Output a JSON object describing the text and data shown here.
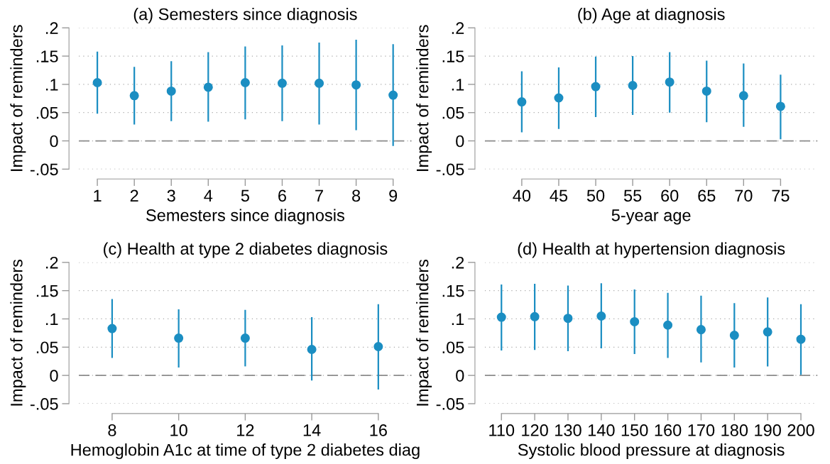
{
  "chart_data": [
    {
      "type": "scatter",
      "title": "(a) Semesters since diagnosis",
      "xlabel": "Semesters since diagnosis",
      "ylabel": "Impact of reminders",
      "x": [
        1,
        2,
        3,
        4,
        5,
        6,
        7,
        8,
        9
      ],
      "series": [
        {
          "color": "#1b8ec2",
          "values": [
            0.103,
            0.08,
            0.088,
            0.095,
            0.103,
            0.102,
            0.102,
            0.099,
            0.081
          ],
          "errors": [
            [
              0.048,
              0.158
            ],
            [
              0.029,
              0.131
            ],
            [
              0.035,
              0.141
            ],
            [
              0.034,
              0.157
            ],
            [
              0.038,
              0.167
            ],
            [
              0.035,
              0.169
            ],
            [
              0.029,
              0.174
            ],
            [
              0.019,
              0.179
            ],
            [
              -0.009,
              0.171
            ]
          ]
        }
      ],
      "xlim": [
        0.5,
        9.5
      ],
      "xticks": [
        1,
        2,
        3,
        4,
        5,
        6,
        7,
        8,
        9
      ],
      "ylim": [
        -0.05,
        0.2
      ],
      "yticks": [
        {
          "value": -0.05,
          "label": "-.05"
        },
        0,
        {
          "value": 0.05,
          "label": ".05"
        },
        {
          "value": 0.1,
          "label": ".1"
        },
        {
          "value": 0.15,
          "label": ".15"
        },
        {
          "value": 0.2,
          "label": ".2"
        }
      ],
      "ref_lines": [
        {
          "axis": "y",
          "value": 0,
          "color": "#8c8c8c",
          "line_style": "dashed"
        }
      ],
      "grid": "y",
      "marker": "circle",
      "legend": false
    },
    {
      "type": "scatter",
      "title": "(b) Age at diagnosis",
      "xlabel": "5-year age",
      "ylabel": "Impact of reminders",
      "x": [
        40,
        45,
        50,
        55,
        60,
        65,
        70,
        75
      ],
      "series": [
        {
          "color": "#1b8ec2",
          "values": [
            0.069,
            0.076,
            0.096,
            0.098,
            0.104,
            0.088,
            0.08,
            0.061
          ],
          "errors": [
            [
              0.015,
              0.123
            ],
            [
              0.021,
              0.13
            ],
            [
              0.042,
              0.149
            ],
            [
              0.046,
              0.15
            ],
            [
              0.05,
              0.157
            ],
            [
              0.033,
              0.142
            ],
            [
              0.025,
              0.137
            ],
            [
              0.003,
              0.117
            ]
          ]
        }
      ],
      "xlim": [
        35,
        80
      ],
      "xticks": [
        40,
        45,
        50,
        55,
        60,
        65,
        70,
        75
      ],
      "ylim": [
        -0.05,
        0.2
      ],
      "yticks": [
        {
          "value": -0.05,
          "label": "-.05"
        },
        0,
        {
          "value": 0.05,
          "label": ".05"
        },
        {
          "value": 0.1,
          "label": ".1"
        },
        {
          "value": 0.15,
          "label": ".15"
        },
        {
          "value": 0.2,
          "label": ".2"
        }
      ],
      "ref_lines": [
        {
          "axis": "y",
          "value": 0,
          "color": "#8c8c8c",
          "line_style": "dashed"
        }
      ],
      "grid": "y",
      "marker": "circle",
      "legend": false
    },
    {
      "type": "scatter",
      "title": "(c) Health at type 2 diabetes diagnosis",
      "xlabel": "Hemoglobin A1c at time of type 2 diabetes diag",
      "ylabel": "Impact of reminders",
      "x": [
        8,
        10,
        12,
        14,
        16
      ],
      "series": [
        {
          "color": "#1b8ec2",
          "values": [
            0.083,
            0.066,
            0.066,
            0.046,
            0.051
          ],
          "errors": [
            [
              0.031,
              0.135
            ],
            [
              0.014,
              0.117
            ],
            [
              0.016,
              0.116
            ],
            [
              -0.009,
              0.103
            ],
            [
              -0.025,
              0.126
            ]
          ]
        }
      ],
      "xlim": [
        7,
        17
      ],
      "xticks": [
        8,
        10,
        12,
        14,
        16
      ],
      "ylim": [
        -0.05,
        0.2
      ],
      "yticks": [
        {
          "value": -0.05,
          "label": "-.05"
        },
        0,
        {
          "value": 0.05,
          "label": ".05"
        },
        {
          "value": 0.1,
          "label": ".1"
        },
        {
          "value": 0.15,
          "label": ".15"
        },
        {
          "value": 0.2,
          "label": ".2"
        }
      ],
      "ref_lines": [
        {
          "axis": "y",
          "value": 0,
          "color": "#8c8c8c",
          "line_style": "dashed"
        }
      ],
      "grid": "y",
      "marker": "circle",
      "legend": false
    },
    {
      "type": "scatter",
      "title": "(d) Health at hypertension diagnosis",
      "xlabel": "Systolic blood pressure at diagnosis",
      "ylabel": "Impact of reminders",
      "x": [
        110,
        120,
        130,
        140,
        150,
        160,
        170,
        180,
        190,
        200
      ],
      "series": [
        {
          "color": "#1b8ec2",
          "values": [
            0.103,
            0.104,
            0.101,
            0.105,
            0.095,
            0.089,
            0.081,
            0.071,
            0.077,
            0.064
          ],
          "errors": [
            [
              0.044,
              0.161
            ],
            [
              0.045,
              0.162
            ],
            [
              0.043,
              0.159
            ],
            [
              0.048,
              0.163
            ],
            [
              0.038,
              0.152
            ],
            [
              0.031,
              0.146
            ],
            [
              0.023,
              0.141
            ],
            [
              0.014,
              0.128
            ],
            [
              0.016,
              0.138
            ],
            [
              0.001,
              0.126
            ]
          ]
        }
      ],
      "xlim": [
        105,
        205
      ],
      "xticks": [
        110,
        120,
        130,
        140,
        150,
        160,
        170,
        180,
        190,
        200
      ],
      "ylim": [
        -0.05,
        0.2
      ],
      "yticks": [
        {
          "value": -0.05,
          "label": "-.05"
        },
        0,
        {
          "value": 0.05,
          "label": ".05"
        },
        {
          "value": 0.1,
          "label": ".1"
        },
        {
          "value": 0.15,
          "label": ".15"
        },
        {
          "value": 0.2,
          "label": ".2"
        }
      ],
      "ref_lines": [
        {
          "axis": "y",
          "value": 0,
          "color": "#8c8c8c",
          "line_style": "dashed"
        }
      ],
      "grid": "y",
      "marker": "circle",
      "legend": false
    }
  ]
}
